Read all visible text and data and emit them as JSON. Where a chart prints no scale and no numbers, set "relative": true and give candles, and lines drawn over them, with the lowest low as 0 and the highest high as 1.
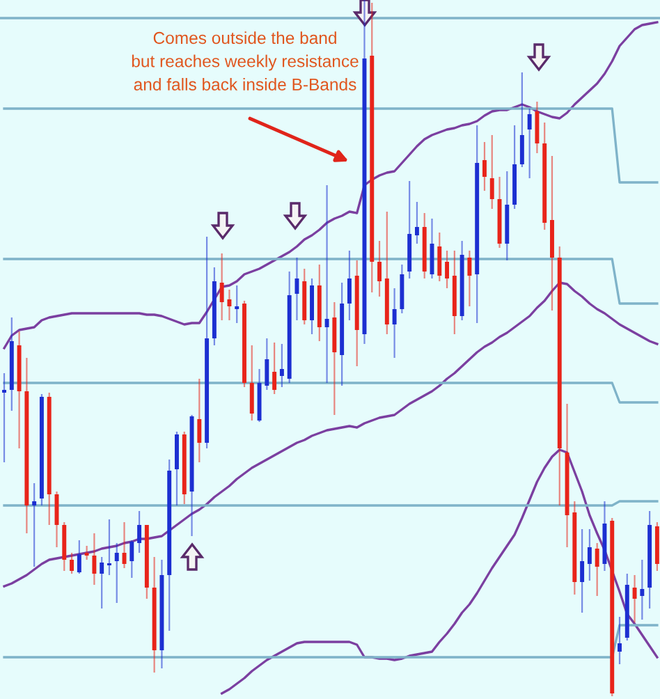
{
  "chart_data": {
    "type": "candlestick",
    "relative": true,
    "categories": [
      null,
      null,
      null,
      null,
      null,
      null,
      null,
      null,
      null,
      null,
      null,
      null,
      null,
      null,
      null,
      null,
      null,
      null,
      null,
      null,
      null,
      null,
      null,
      null,
      null,
      null,
      null,
      null,
      null,
      null,
      null,
      null,
      null,
      null,
      null,
      null,
      null,
      null,
      null,
      null,
      null,
      null,
      null,
      null,
      null,
      null,
      null,
      null,
      null,
      null,
      null,
      null,
      null,
      null,
      null,
      null,
      null,
      null,
      null,
      null,
      null,
      null,
      null,
      null,
      null,
      null,
      null,
      null,
      null,
      null,
      null,
      null,
      null,
      null,
      null,
      null,
      null,
      null,
      null,
      null,
      null,
      null,
      null,
      null,
      null,
      null,
      null,
      null
    ],
    "ohlc": [
      [
        0.436,
        0.464,
        0.336,
        0.44
      ],
      [
        0.44,
        0.544,
        0.41,
        0.51
      ],
      [
        0.504,
        0.524,
        0.356,
        0.438
      ],
      [
        0.438,
        0.486,
        0.234,
        0.274
      ],
      [
        0.274,
        0.306,
        0.186,
        0.28
      ],
      [
        0.284,
        0.434,
        0.274,
        0.43
      ],
      [
        0.43,
        0.436,
        0.246,
        0.29
      ],
      [
        0.29,
        0.294,
        0.214,
        0.246
      ],
      [
        0.246,
        0.25,
        0.18,
        0.196
      ],
      [
        0.196,
        0.206,
        0.176,
        0.18
      ],
      [
        0.178,
        0.224,
        0.176,
        0.204
      ],
      [
        0.206,
        0.216,
        0.196,
        0.202
      ],
      [
        0.202,
        0.234,
        0.16,
        0.176
      ],
      [
        0.176,
        0.2,
        0.126,
        0.192
      ],
      [
        0.188,
        0.254,
        0.174,
        0.19
      ],
      [
        0.194,
        0.22,
        0.134,
        0.206
      ],
      [
        0.206,
        0.25,
        0.184,
        0.19
      ],
      [
        0.194,
        0.224,
        0.17,
        0.222
      ],
      [
        0.22,
        0.266,
        0.206,
        0.246
      ],
      [
        0.246,
        0.246,
        0.14,
        0.156
      ],
      [
        0.156,
        0.2,
        0.034,
        0.066
      ],
      [
        0.066,
        0.196,
        0.04,
        0.174
      ],
      [
        0.174,
        0.34,
        0.094,
        0.324
      ],
      [
        0.326,
        0.38,
        0.274,
        0.376
      ],
      [
        0.376,
        0.38,
        0.276,
        0.29
      ],
      [
        0.294,
        0.404,
        0.23,
        0.402
      ],
      [
        0.398,
        0.456,
        0.336,
        0.364
      ],
      [
        0.364,
        0.66,
        0.356,
        0.514
      ],
      [
        0.514,
        0.616,
        0.504,
        0.596
      ],
      [
        0.594,
        0.636,
        0.54,
        0.566
      ],
      [
        0.57,
        0.584,
        0.54,
        0.56
      ],
      [
        0.556,
        0.59,
        0.536,
        0.56
      ],
      [
        0.564,
        0.568,
        0.444,
        0.45
      ],
      [
        0.45,
        0.504,
        0.396,
        0.406
      ],
      [
        0.396,
        0.47,
        0.394,
        0.45
      ],
      [
        0.446,
        0.514,
        0.44,
        0.484
      ],
      [
        0.466,
        0.508,
        0.434,
        0.44
      ],
      [
        0.46,
        0.506,
        0.444,
        0.47
      ],
      [
        0.456,
        0.61,
        0.45,
        0.576
      ],
      [
        0.578,
        0.63,
        0.54,
        0.6
      ],
      [
        0.596,
        0.614,
        0.534,
        0.54
      ],
      [
        0.54,
        0.6,
        0.52,
        0.59
      ],
      [
        0.59,
        0.62,
        0.51,
        0.53
      ],
      [
        0.53,
        0.734,
        0.45,
        0.542
      ],
      [
        0.544,
        0.566,
        0.404,
        0.494
      ],
      [
        0.49,
        0.594,
        0.446,
        0.564
      ],
      [
        0.564,
        0.64,
        0.54,
        0.6
      ],
      [
        0.604,
        0.626,
        0.474,
        0.526
      ],
      [
        0.52,
        1.0,
        0.506,
        0.916
      ],
      [
        0.92,
        0.996,
        0.58,
        0.624
      ],
      [
        0.624,
        0.654,
        0.574,
        0.596
      ],
      [
        0.6,
        0.696,
        0.52,
        0.534
      ],
      [
        0.534,
        0.586,
        0.486,
        0.556
      ],
      [
        0.556,
        0.62,
        0.55,
        0.606
      ],
      [
        0.61,
        0.74,
        0.6,
        0.664
      ],
      [
        0.662,
        0.71,
        0.65,
        0.674
      ],
      [
        0.674,
        0.694,
        0.6,
        0.61
      ],
      [
        0.606,
        0.686,
        0.6,
        0.65
      ],
      [
        0.646,
        0.666,
        0.596,
        0.604
      ],
      [
        0.624,
        0.64,
        0.586,
        0.6
      ],
      [
        0.604,
        0.64,
        0.52,
        0.546
      ],
      [
        0.546,
        0.654,
        0.54,
        0.634
      ],
      [
        0.63,
        0.64,
        0.56,
        0.604
      ],
      [
        0.606,
        0.82,
        0.536,
        0.766
      ],
      [
        0.77,
        0.796,
        0.726,
        0.746
      ],
      [
        0.744,
        0.806,
        0.7,
        0.714
      ],
      [
        0.714,
        0.746,
        0.644,
        0.65
      ],
      [
        0.65,
        0.754,
        0.626,
        0.706
      ],
      [
        0.706,
        0.82,
        0.7,
        0.764
      ],
      [
        0.764,
        0.896,
        0.76,
        0.806
      ],
      [
        0.814,
        0.844,
        0.744,
        0.836
      ],
      [
        0.84,
        0.854,
        0.78,
        0.794
      ],
      [
        0.794,
        0.824,
        0.67,
        0.68
      ],
      [
        0.684,
        0.776,
        0.554,
        0.63
      ],
      [
        0.63,
        0.646,
        0.274,
        0.356
      ],
      [
        0.35,
        0.42,
        0.214,
        0.26
      ],
      [
        0.264,
        0.28,
        0.146,
        0.164
      ],
      [
        0.164,
        0.24,
        0.12,
        0.194
      ],
      [
        0.19,
        0.24,
        0.166,
        0.214
      ],
      [
        0.212,
        0.22,
        0.144,
        0.186
      ],
      [
        0.19,
        0.28,
        0.18,
        0.248
      ],
      [
        0.252,
        0.256,
        0.0,
        0.004
      ],
      [
        0.064,
        0.114,
        0.046,
        0.076
      ],
      [
        0.084,
        0.176,
        0.08,
        0.16
      ],
      [
        0.156,
        0.174,
        0.106,
        0.14
      ],
      [
        0.144,
        0.196,
        0.11,
        0.154
      ],
      [
        0.156,
        0.266,
        0.126,
        0.246
      ],
      [
        0.244,
        0.25,
        0.18,
        0.19
      ]
    ],
    "colors": [
      "#1c2fd1",
      "#1c2fd1",
      "#e8241a",
      "#e8241a",
      "#1c2fd1",
      "#1c2fd1",
      "#e8241a",
      "#e8241a",
      "#e8241a",
      "#e8241a",
      "#1c2fd1",
      "#e8241a",
      "#e8241a",
      "#1c2fd1",
      "#1c2fd1",
      "#1c2fd1",
      "#e8241a",
      "#1c2fd1",
      "#1c2fd1",
      "#e8241a",
      "#e8241a",
      "#1c2fd1",
      "#1c2fd1",
      "#1c2fd1",
      "#e8241a",
      "#1c2fd1",
      "#e8241a",
      "#1c2fd1",
      "#1c2fd1",
      "#e8241a",
      "#e8241a",
      "#1c2fd1",
      "#e8241a",
      "#e8241a",
      "#1c2fd1",
      "#1c2fd1",
      "#e8241a",
      "#1c2fd1",
      "#1c2fd1",
      "#1c2fd1",
      "#e8241a",
      "#1c2fd1",
      "#e8241a",
      "#1c2fd1",
      "#e8241a",
      "#1c2fd1",
      "#1c2fd1",
      "#e8241a",
      "#1c2fd1",
      "#e8241a",
      "#e8241a",
      "#e8241a",
      "#1c2fd1",
      "#1c2fd1",
      "#1c2fd1",
      "#1c2fd1",
      "#e8241a",
      "#1c2fd1",
      "#e8241a",
      "#e8241a",
      "#e8241a",
      "#1c2fd1",
      "#e8241a",
      "#1c2fd1",
      "#e8241a",
      "#e8241a",
      "#e8241a",
      "#1c2fd1",
      "#1c2fd1",
      "#1c2fd1",
      "#1c2fd1",
      "#e8241a",
      "#e8241a",
      "#e8241a",
      "#e8241a",
      "#e8241a",
      "#e8241a",
      "#1c2fd1",
      "#1c2fd1",
      "#e8241a",
      "#1c2fd1",
      "#e8241a",
      "#1c2fd1",
      "#1c2fd1",
      "#e8241a",
      "#1c2fd1",
      "#1c2fd1",
      "#e8241a"
    ],
    "series": [
      {
        "type": "line",
        "color": "#7b3fa0",
        "values": [
          0.5,
          0.518,
          0.526,
          0.528,
          0.53,
          0.54,
          0.544,
          0.546,
          0.548,
          0.55,
          0.55,
          0.55,
          0.55,
          0.55,
          0.55,
          0.55,
          0.55,
          0.55,
          0.55,
          0.548,
          0.548,
          0.546,
          0.542,
          0.538,
          0.534,
          0.536,
          0.536,
          0.552,
          0.57,
          0.588,
          0.59,
          0.596,
          0.606,
          0.61,
          0.614,
          0.62,
          0.626,
          0.632,
          0.638,
          0.646,
          0.656,
          0.662,
          0.67,
          0.68,
          0.686,
          0.69,
          0.696,
          0.694,
          0.734,
          0.742,
          0.748,
          0.752,
          0.754,
          0.766,
          0.778,
          0.79,
          0.8,
          0.806,
          0.81,
          0.814,
          0.816,
          0.82,
          0.822,
          0.826,
          0.834,
          0.84,
          0.842,
          0.842,
          0.846,
          0.85,
          0.846,
          0.84,
          0.836,
          0.832,
          0.83,
          0.838,
          0.85,
          0.86,
          0.87,
          0.88,
          0.894,
          0.912,
          0.934,
          0.946,
          0.958,
          0.964,
          0.966,
          0.968
        ]
      },
      {
        "type": "line",
        "color": "#7b3fa0",
        "values": [
          0.158,
          0.162,
          0.168,
          0.174,
          0.182,
          0.19,
          0.196,
          0.198,
          0.2,
          0.202,
          0.204,
          0.206,
          0.208,
          0.212,
          0.214,
          0.216,
          0.22,
          0.222,
          0.226,
          0.226,
          0.228,
          0.23,
          0.238,
          0.246,
          0.254,
          0.262,
          0.268,
          0.276,
          0.286,
          0.294,
          0.302,
          0.312,
          0.32,
          0.328,
          0.334,
          0.34,
          0.346,
          0.352,
          0.358,
          0.364,
          0.368,
          0.374,
          0.378,
          0.382,
          0.384,
          0.386,
          0.388,
          0.386,
          0.392,
          0.396,
          0.4,
          0.402,
          0.404,
          0.412,
          0.42,
          0.426,
          0.432,
          0.438,
          0.446,
          0.456,
          0.464,
          0.474,
          0.484,
          0.494,
          0.502,
          0.508,
          0.516,
          0.522,
          0.53,
          0.538,
          0.546,
          0.558,
          0.568,
          0.582,
          0.594,
          0.592,
          0.582,
          0.574,
          0.564,
          0.556,
          0.55,
          0.542,
          0.534,
          0.528,
          0.522,
          0.516,
          0.51,
          0.506
        ]
      },
      {
        "type": "line",
        "color": "#7b3fa0",
        "values": [
          null,
          null,
          null,
          null,
          null,
          null,
          null,
          null,
          null,
          null,
          null,
          null,
          null,
          null,
          null,
          null,
          null,
          null,
          null,
          null,
          null,
          null,
          null,
          null,
          null,
          null,
          null,
          null,
          null,
          0.004,
          0.01,
          0.018,
          0.026,
          0.036,
          0.044,
          0.052,
          0.058,
          0.064,
          0.07,
          0.076,
          0.078,
          0.078,
          0.078,
          0.078,
          0.078,
          0.078,
          0.078,
          0.074,
          0.056,
          0.056,
          0.054,
          0.054,
          0.052,
          0.054,
          0.058,
          0.06,
          0.062,
          0.064,
          0.078,
          0.09,
          0.104,
          0.12,
          0.132,
          0.148,
          0.166,
          0.184,
          0.2,
          0.216,
          0.232,
          0.256,
          0.282,
          0.308,
          0.328,
          0.344,
          0.354,
          0.35,
          0.322,
          0.294,
          0.26,
          0.234,
          0.21,
          0.18,
          0.15,
          0.118,
          0.104,
          0.088,
          0.072,
          0.056
        ]
      },
      {
        "type": "line",
        "color": "#7fb3c9",
        "values": [
          0.844,
          0.844,
          0.844,
          0.844,
          0.844,
          0.844,
          0.844,
          0.844,
          0.844,
          0.844,
          0.844,
          0.844,
          0.844,
          0.844,
          0.844,
          0.844,
          0.844,
          0.844,
          0.844,
          0.844,
          0.844,
          0.844,
          0.844,
          0.844,
          0.844,
          0.844,
          0.844,
          0.844,
          0.844,
          0.844,
          0.844,
          0.844,
          0.844,
          0.844,
          0.844,
          0.844,
          0.844,
          0.844,
          0.844,
          0.844,
          0.844,
          0.844,
          0.844,
          0.844,
          0.844,
          0.844,
          0.844,
          0.844,
          0.844,
          0.844,
          0.844,
          0.844,
          0.844,
          0.844,
          0.844,
          0.844,
          0.844,
          0.844,
          0.844,
          0.844,
          0.844,
          0.844,
          0.844,
          0.844,
          0.844,
          0.844,
          0.844,
          0.844,
          0.844,
          0.844,
          0.844,
          0.844,
          0.844,
          0.844,
          0.844,
          0.844,
          0.844,
          0.844,
          0.844,
          0.844,
          0.844,
          0.844,
          0.738,
          0.738,
          0.738,
          0.738,
          0.738,
          0.738
        ]
      },
      {
        "type": "line",
        "color": "#7fb3c9",
        "values": [
          0.628,
          0.628,
          0.628,
          0.628,
          0.628,
          0.628,
          0.628,
          0.628,
          0.628,
          0.628,
          0.628,
          0.628,
          0.628,
          0.628,
          0.628,
          0.628,
          0.628,
          0.628,
          0.628,
          0.628,
          0.628,
          0.628,
          0.628,
          0.628,
          0.628,
          0.628,
          0.628,
          0.628,
          0.628,
          0.628,
          0.628,
          0.628,
          0.628,
          0.628,
          0.628,
          0.628,
          0.628,
          0.628,
          0.628,
          0.628,
          0.628,
          0.628,
          0.628,
          0.628,
          0.628,
          0.628,
          0.628,
          0.628,
          0.628,
          0.628,
          0.628,
          0.628,
          0.628,
          0.628,
          0.628,
          0.628,
          0.628,
          0.628,
          0.628,
          0.628,
          0.628,
          0.628,
          0.628,
          0.628,
          0.628,
          0.628,
          0.628,
          0.628,
          0.628,
          0.628,
          0.628,
          0.628,
          0.628,
          0.628,
          0.628,
          0.628,
          0.628,
          0.628,
          0.628,
          0.628,
          0.628,
          0.628,
          0.564,
          0.564,
          0.564,
          0.564,
          0.564,
          0.564
        ]
      },
      {
        "type": "line",
        "color": "#7fb3c9",
        "values": [
          0.45,
          0.45,
          0.45,
          0.45,
          0.45,
          0.45,
          0.45,
          0.45,
          0.45,
          0.45,
          0.45,
          0.45,
          0.45,
          0.45,
          0.45,
          0.45,
          0.45,
          0.45,
          0.45,
          0.45,
          0.45,
          0.45,
          0.45,
          0.45,
          0.45,
          0.45,
          0.45,
          0.45,
          0.45,
          0.45,
          0.45,
          0.45,
          0.45,
          0.45,
          0.45,
          0.45,
          0.45,
          0.45,
          0.45,
          0.45,
          0.45,
          0.45,
          0.45,
          0.45,
          0.45,
          0.45,
          0.45,
          0.45,
          0.45,
          0.45,
          0.45,
          0.45,
          0.45,
          0.45,
          0.45,
          0.45,
          0.45,
          0.45,
          0.45,
          0.45,
          0.45,
          0.45,
          0.45,
          0.45,
          0.45,
          0.45,
          0.45,
          0.45,
          0.45,
          0.45,
          0.45,
          0.45,
          0.45,
          0.45,
          0.45,
          0.45,
          0.45,
          0.45,
          0.45,
          0.45,
          0.45,
          0.45,
          0.422,
          0.422,
          0.422,
          0.422,
          0.422,
          0.422
        ]
      },
      {
        "type": "line",
        "color": "#7fb3c9",
        "values": [
          0.274,
          0.274,
          0.274,
          0.274,
          0.274,
          0.274,
          0.274,
          0.274,
          0.274,
          0.274,
          0.274,
          0.274,
          0.274,
          0.274,
          0.274,
          0.274,
          0.274,
          0.274,
          0.274,
          0.274,
          0.274,
          0.274,
          0.274,
          0.274,
          0.274,
          0.274,
          0.274,
          0.274,
          0.274,
          0.274,
          0.274,
          0.274,
          0.274,
          0.274,
          0.274,
          0.274,
          0.274,
          0.274,
          0.274,
          0.274,
          0.274,
          0.274,
          0.274,
          0.274,
          0.274,
          0.274,
          0.274,
          0.274,
          0.274,
          0.274,
          0.274,
          0.274,
          0.274,
          0.274,
          0.274,
          0.274,
          0.274,
          0.274,
          0.274,
          0.274,
          0.274,
          0.274,
          0.274,
          0.274,
          0.274,
          0.274,
          0.274,
          0.274,
          0.274,
          0.274,
          0.274,
          0.274,
          0.274,
          0.274,
          0.274,
          0.274,
          0.274,
          0.274,
          0.274,
          0.274,
          0.274,
          0.274,
          0.28,
          0.28,
          0.28,
          0.28,
          0.28,
          0.28
        ]
      },
      {
        "type": "line",
        "color": "#7fb3c9",
        "values": [
          0.056,
          0.056,
          0.056,
          0.056,
          0.056,
          0.056,
          0.056,
          0.056,
          0.056,
          0.056,
          0.056,
          0.056,
          0.056,
          0.056,
          0.056,
          0.056,
          0.056,
          0.056,
          0.056,
          0.056,
          0.056,
          0.056,
          0.056,
          0.056,
          0.056,
          0.056,
          0.056,
          0.056,
          0.056,
          0.056,
          0.056,
          0.056,
          0.056,
          0.056,
          0.056,
          0.056,
          0.056,
          0.056,
          0.056,
          0.056,
          0.056,
          0.056,
          0.056,
          0.056,
          0.056,
          0.056,
          0.056,
          0.056,
          0.056,
          0.056,
          0.056,
          0.056,
          0.056,
          0.056,
          0.056,
          0.056,
          0.056,
          0.056,
          0.056,
          0.056,
          0.056,
          0.056,
          0.056,
          0.056,
          0.056,
          0.056,
          0.056,
          0.056,
          0.056,
          0.056,
          0.056,
          0.056,
          0.056,
          0.056,
          0.056,
          0.056,
          0.056,
          0.056,
          0.056,
          0.056,
          0.056,
          0.056,
          0.102,
          0.102,
          0.102,
          0.102,
          0.102,
          0.102
        ]
      }
    ],
    "ref_lines": [
      {
        "axis": "y",
        "value": 0.974,
        "color": "#7fb3c9"
      }
    ],
    "annotations": [
      "Comes outside the band\nbut reaches weekly resistance\nand falls back inside B-Bands"
    ]
  }
}
